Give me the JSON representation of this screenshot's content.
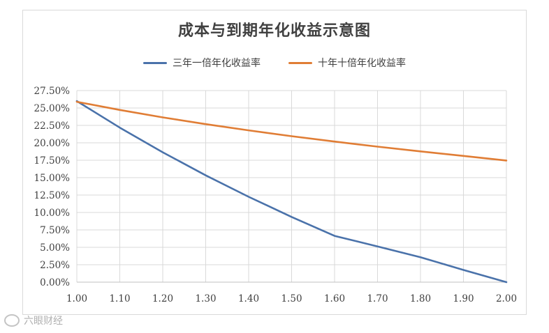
{
  "chart_data": {
    "type": "line",
    "title": "成本与到期年化收益示意图",
    "xlabel": "",
    "ylabel": "",
    "xlim": [
      1.0,
      2.0
    ],
    "ylim": [
      0,
      27.5
    ],
    "x_ticks": [
      "1.00",
      "1.10",
      "1.20",
      "1.30",
      "1.40",
      "1.50",
      "1.60",
      "1.70",
      "1.80",
      "1.90",
      "2.00"
    ],
    "y_ticks": [
      "0.00%",
      "2.50%",
      "5.00%",
      "7.50%",
      "10.00%",
      "12.50%",
      "15.00%",
      "17.50%",
      "20.00%",
      "22.50%",
      "25.00%",
      "27.50%"
    ],
    "grid": true,
    "legend_position": "top",
    "x": [
      1.0,
      1.1,
      1.2,
      1.3,
      1.4,
      1.5,
      1.6,
      1.7,
      1.8,
      1.9,
      2.0
    ],
    "series": [
      {
        "name": "三年一倍年化收益率",
        "color": "#4a72aa",
        "values": [
          25.99,
          22.18,
          18.64,
          15.33,
          12.25,
          9.36,
          6.64,
          5.13,
          3.58,
          1.75,
          0.0
        ]
      },
      {
        "name": "十年十倍年化收益率",
        "color": "#e07d35",
        "values": [
          25.89,
          24.72,
          23.65,
          22.68,
          21.79,
          20.95,
          20.18,
          19.45,
          18.77,
          18.12,
          17.46
        ]
      }
    ]
  },
  "watermark": {
    "text": "六眼财经"
  }
}
